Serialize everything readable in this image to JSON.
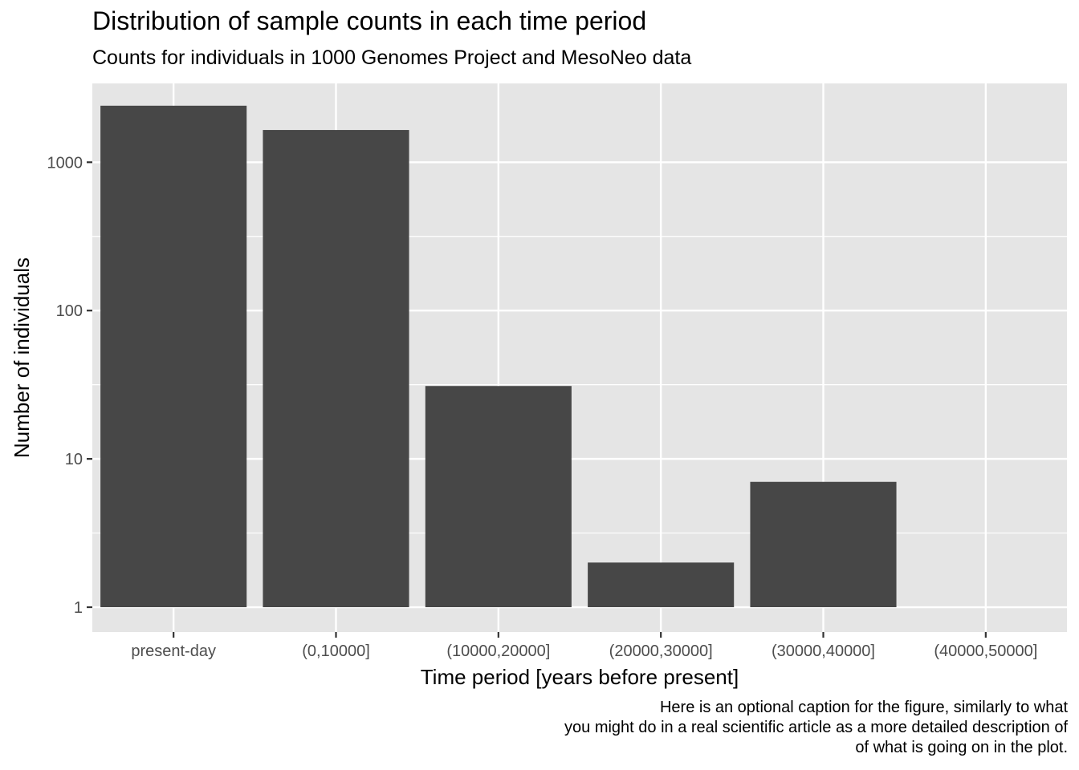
{
  "chart_data": {
    "type": "bar",
    "title": "Distribution of sample counts in each time period",
    "subtitle": "Counts for individuals in 1000 Genomes Project and MesoNeo data",
    "xlabel": "Time period [years before present]",
    "ylabel": "Number of individuals",
    "y_scale": "log10",
    "ylim": [
      0.68,
      3400
    ],
    "y_ticks": [
      1,
      10,
      100,
      1000
    ],
    "y_tick_labels": [
      "1",
      "10",
      "100",
      "1000"
    ],
    "categories": [
      "present-day",
      "(0,10000]",
      "(10000,20000]",
      "(20000,30000]",
      "(30000,40000]",
      "(40000,50000]"
    ],
    "values": [
      2405,
      1650,
      31,
      2,
      7,
      null
    ],
    "grid": true,
    "colors": {
      "bar": "#474747",
      "panel": "#e5e5e5",
      "grid": "#ffffff",
      "tick_text": "#4d4d4d"
    },
    "caption": [
      "Here is an optional caption for the figure, similarly to what",
      "you might do in a real scientific article as a more detailed description of",
      "of what is going on in the plot."
    ]
  }
}
